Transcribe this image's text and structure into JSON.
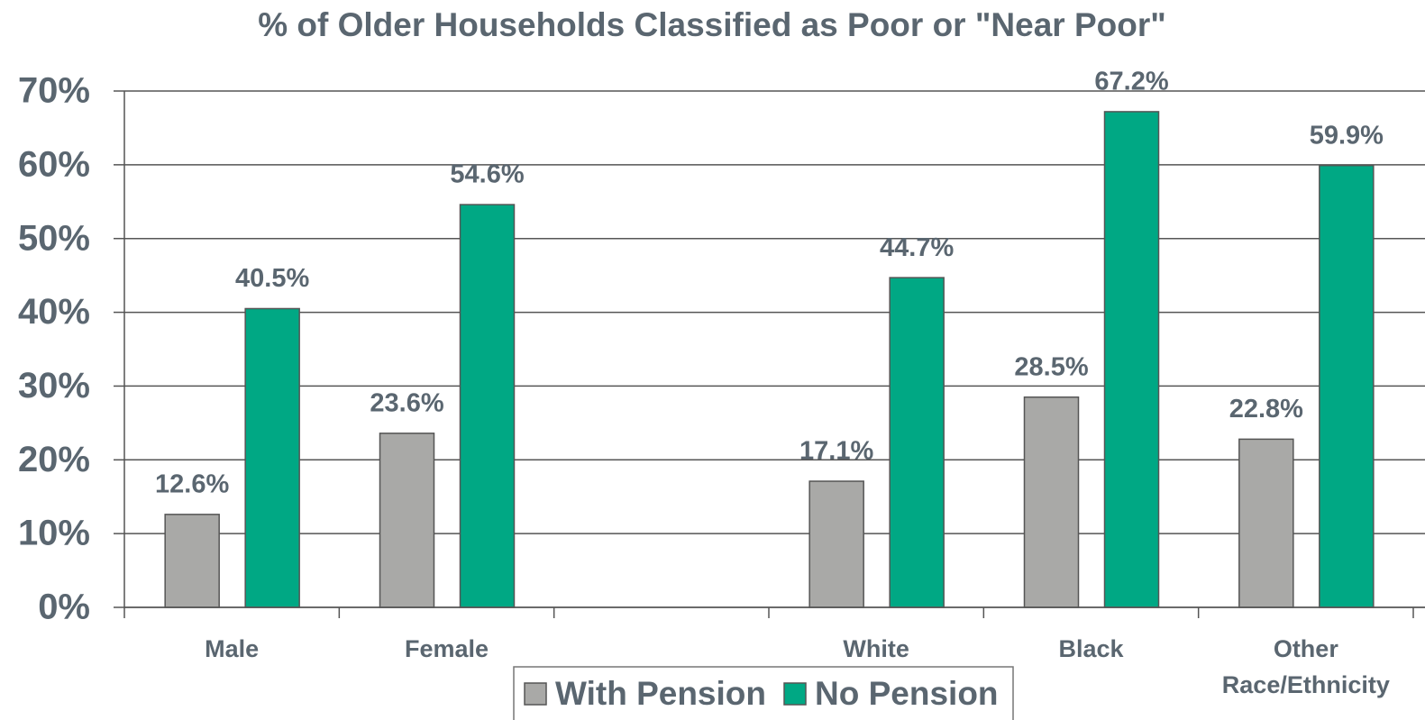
{
  "chart_data": {
    "type": "bar",
    "title": "% of Older Households Classified as Poor or \"Near Poor\"",
    "categories": [
      "Male",
      "Female",
      null,
      "White",
      "Black",
      "Other Race/Ethnicity"
    ],
    "series": [
      {
        "name": "With Pension",
        "color": "#a9a9a7",
        "values": [
          12.6,
          23.6,
          null,
          17.1,
          28.5,
          22.8
        ],
        "value_labels": [
          "12.6%",
          "23.6%",
          null,
          "17.1%",
          "28.5%",
          "22.8%"
        ]
      },
      {
        "name": "No Pension",
        "color": "#00a884",
        "values": [
          40.5,
          54.6,
          null,
          44.7,
          67.2,
          59.9
        ],
        "value_labels": [
          "40.5%",
          "54.6%",
          null,
          "44.7%",
          "67.2%",
          "59.9%"
        ]
      }
    ],
    "ylim": [
      0,
      70
    ],
    "yticks": [
      {
        "value": 0,
        "label": "0%"
      },
      {
        "value": 10,
        "label": "10%"
      },
      {
        "value": 20,
        "label": "20%"
      },
      {
        "value": 30,
        "label": "30%"
      },
      {
        "value": 40,
        "label": "40%"
      },
      {
        "value": 50,
        "label": "50%"
      },
      {
        "value": 60,
        "label": "60%"
      },
      {
        "value": 70,
        "label": "70%"
      }
    ],
    "grid": true,
    "legend": "bottom"
  }
}
